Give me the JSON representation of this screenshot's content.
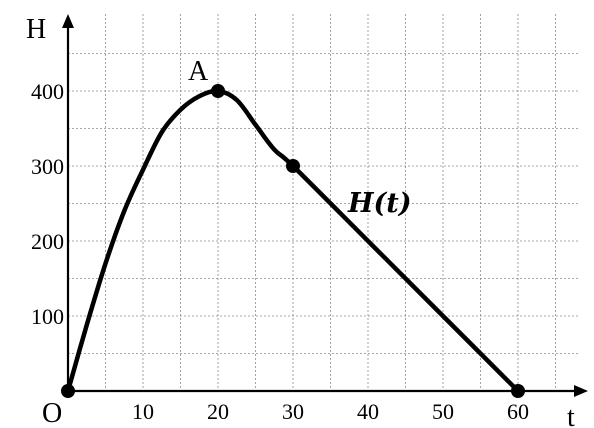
{
  "chart_data": {
    "type": "line",
    "xlabel": "t",
    "ylabel": "H",
    "origin_label": "O",
    "xlim": [
      0,
      68
    ],
    "ylim": [
      0,
      450
    ],
    "x_ticks": [
      10,
      20,
      30,
      40,
      50,
      60
    ],
    "y_ticks": [
      100,
      200,
      300,
      400
    ],
    "grid": true,
    "grid_style": "dotted",
    "series": [
      {
        "name": "H(t)",
        "x": [
          0,
          2.5,
          5,
          7.5,
          10,
          12.5,
          15,
          17.5,
          20,
          22.5,
          25,
          27.5,
          30,
          40,
          50,
          60
        ],
        "y": [
          0,
          88,
          170,
          240,
          295,
          345,
          375,
          393,
          400,
          388,
          355,
          322,
          300,
          200,
          100,
          0
        ],
        "color": "#000000"
      }
    ],
    "points": [
      {
        "x": 0,
        "y": 0
      },
      {
        "x": 20,
        "y": 400,
        "label": "A"
      },
      {
        "x": 30,
        "y": 300
      },
      {
        "x": 60,
        "y": 0
      }
    ],
    "annotations": [
      {
        "text": "H(t)",
        "x": 40,
        "y": 255
      }
    ]
  }
}
